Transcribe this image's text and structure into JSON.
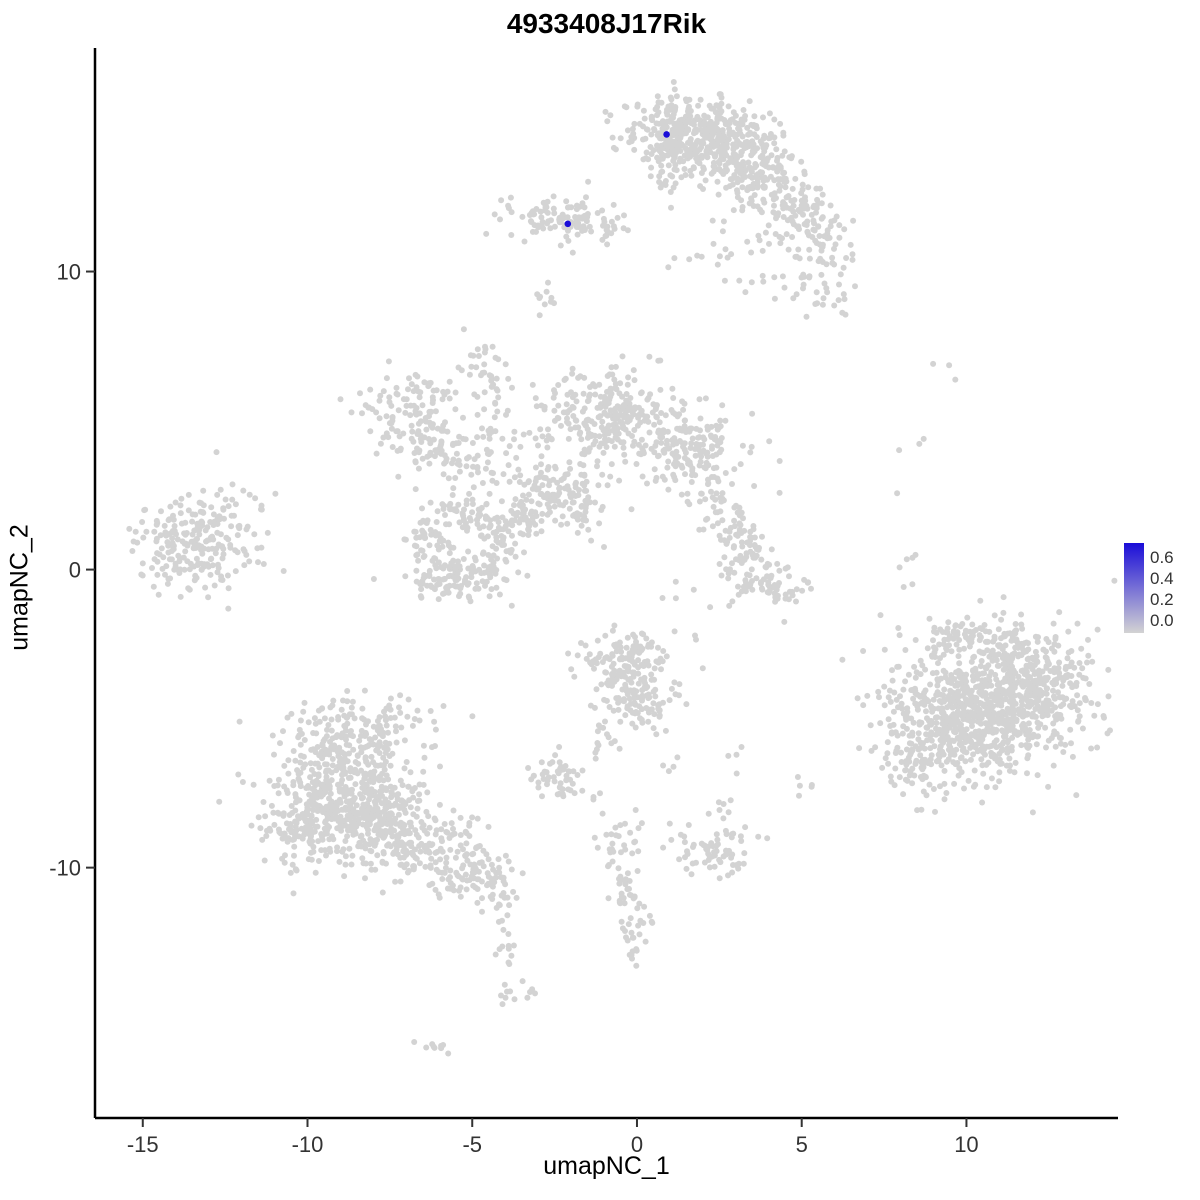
{
  "title": "4933408J17Rik",
  "axes": {
    "x": {
      "label": "umapNC_1",
      "ticks": [
        -15,
        -10,
        -5,
        0,
        5,
        10
      ],
      "range": [
        -16.45,
        14.6
      ]
    },
    "y": {
      "label": "umapNC_2",
      "ticks": [
        -10,
        0,
        10
      ],
      "range": [
        -18.4,
        17.5
      ]
    }
  },
  "legend": {
    "ticks": [
      "0.6",
      "0.4",
      "0.2",
      "0.0"
    ],
    "low_color": "#D3D3D3",
    "high_color": "#1A0DD8"
  },
  "chart_data": {
    "type": "scatter",
    "title": "4933408J17Rik",
    "xlabel": "umapNC_1",
    "ylabel": "umapNC_2",
    "xlim": [
      -16.45,
      14.6
    ],
    "ylim": [
      -18.4,
      17.5
    ],
    "grid": false,
    "legend_position": "right",
    "point_color_low": "#D3D3D3",
    "point_color_high": "#1A0DD8",
    "point_radius_px": 3.0,
    "cluster_format": [
      "x_center",
      "y_center",
      "x_sd",
      "y_sd",
      "n_points"
    ],
    "clusters": [
      [
        1.7,
        14.7,
        1.05,
        0.55,
        330
      ],
      [
        2.9,
        14.0,
        0.8,
        0.55,
        160
      ],
      [
        1.0,
        13.9,
        0.35,
        0.8,
        70
      ],
      [
        3.9,
        13.0,
        0.7,
        0.5,
        90
      ],
      [
        4.9,
        12.1,
        0.6,
        0.45,
        60
      ],
      [
        5.5,
        11.1,
        0.55,
        0.45,
        45
      ],
      [
        3.6,
        10.6,
        1.3,
        0.8,
        45
      ],
      [
        5.6,
        9.5,
        0.5,
        0.5,
        30
      ],
      [
        -2.4,
        11.8,
        0.75,
        0.4,
        95
      ],
      [
        -1.1,
        11.5,
        0.6,
        0.3,
        35
      ],
      [
        -2.8,
        9.2,
        0.15,
        0.4,
        5
      ],
      [
        -6.8,
        5.0,
        0.75,
        0.85,
        140
      ],
      [
        -5.3,
        3.6,
        0.7,
        0.5,
        55
      ],
      [
        -4.7,
        7.1,
        0.35,
        0.35,
        22
      ],
      [
        -4.4,
        6.0,
        0.35,
        0.5,
        18
      ],
      [
        -0.8,
        5.1,
        1.0,
        0.8,
        270
      ],
      [
        1.6,
        4.0,
        0.85,
        0.7,
        170
      ],
      [
        -2.5,
        2.7,
        0.65,
        0.55,
        90
      ],
      [
        -6.3,
        0.8,
        0.4,
        0.55,
        55
      ],
      [
        -5.2,
        1.8,
        0.6,
        0.35,
        55
      ],
      [
        -4.1,
        0.9,
        0.4,
        0.55,
        55
      ],
      [
        -5.0,
        -0.2,
        0.65,
        0.35,
        70
      ],
      [
        -5.9,
        -0.4,
        0.5,
        0.35,
        45
      ],
      [
        -3.3,
        1.9,
        0.45,
        0.4,
        40
      ],
      [
        -1.6,
        2.2,
        0.4,
        0.6,
        45
      ],
      [
        -4.2,
        4.5,
        0.9,
        0.45,
        30
      ],
      [
        -2.75,
        9.0,
        0.2,
        0.45,
        5
      ],
      [
        2.8,
        1.6,
        0.45,
        0.55,
        45
      ],
      [
        3.3,
        0.3,
        0.45,
        0.5,
        50
      ],
      [
        4.0,
        -0.6,
        0.6,
        0.35,
        60
      ],
      [
        2.3,
        2.8,
        0.3,
        0.3,
        6
      ],
      [
        -13.4,
        1.0,
        0.95,
        0.85,
        230
      ],
      [
        -11.9,
        2.1,
        0.6,
        0.45,
        15
      ],
      [
        9.3,
        6.8,
        0.2,
        0.2,
        3
      ],
      [
        8.2,
        0.9,
        0.2,
        1.5,
        8
      ],
      [
        8.7,
        4.3,
        0.15,
        0.15,
        2
      ],
      [
        10.8,
        -4.4,
        1.4,
        1.2,
        650
      ],
      [
        9.4,
        -5.3,
        0.95,
        0.95,
        260
      ],
      [
        12.1,
        -4.0,
        0.8,
        0.85,
        190
      ],
      [
        10.2,
        -2.4,
        1.1,
        0.45,
        70
      ],
      [
        8.3,
        -6.6,
        0.5,
        0.5,
        40
      ],
      [
        -8.9,
        -6.4,
        1.0,
        0.85,
        270
      ],
      [
        -9.5,
        -8.4,
        1.0,
        0.85,
        270
      ],
      [
        -7.8,
        -8.1,
        0.9,
        0.8,
        220
      ],
      [
        -6.4,
        -9.2,
        0.85,
        0.55,
        130
      ],
      [
        -5.0,
        -10.2,
        0.7,
        0.5,
        90
      ],
      [
        -8.3,
        -4.9,
        1.1,
        0.45,
        55
      ],
      [
        -4.15,
        -11.8,
        0.22,
        0.75,
        22
      ],
      [
        -3.95,
        -13.1,
        0.15,
        0.25,
        5
      ],
      [
        -3.8,
        -14.1,
        0.3,
        0.22,
        12
      ],
      [
        -6.2,
        -15.9,
        0.32,
        0.18,
        9
      ],
      [
        -0.4,
        -3.2,
        0.65,
        0.6,
        140
      ],
      [
        0.2,
        -4.4,
        0.5,
        0.45,
        80
      ],
      [
        -0.9,
        -5.6,
        0.25,
        0.45,
        15
      ],
      [
        -2.4,
        -6.9,
        0.55,
        0.35,
        55
      ],
      [
        -0.6,
        -9.2,
        0.3,
        0.45,
        25
      ],
      [
        -0.25,
        -10.7,
        0.28,
        0.65,
        35
      ],
      [
        -0.1,
        -12.3,
        0.28,
        0.5,
        22
      ],
      [
        2.4,
        -9.4,
        0.65,
        0.4,
        70
      ],
      [
        2.6,
        -7.8,
        0.25,
        0.45,
        7
      ],
      [
        3.1,
        -6.4,
        0.2,
        0.3,
        4
      ],
      [
        1.2,
        -1.2,
        0.7,
        0.7,
        8
      ],
      [
        5.1,
        -7.4,
        0.3,
        0.25,
        5
      ],
      [
        1.4,
        -6.3,
        0.3,
        0.3,
        4
      ]
    ],
    "highlighted_points": [
      {
        "x": 0.9,
        "y": 14.6,
        "value": 0.65
      },
      {
        "x": -2.1,
        "y": 11.6,
        "value": 0.6
      }
    ]
  }
}
